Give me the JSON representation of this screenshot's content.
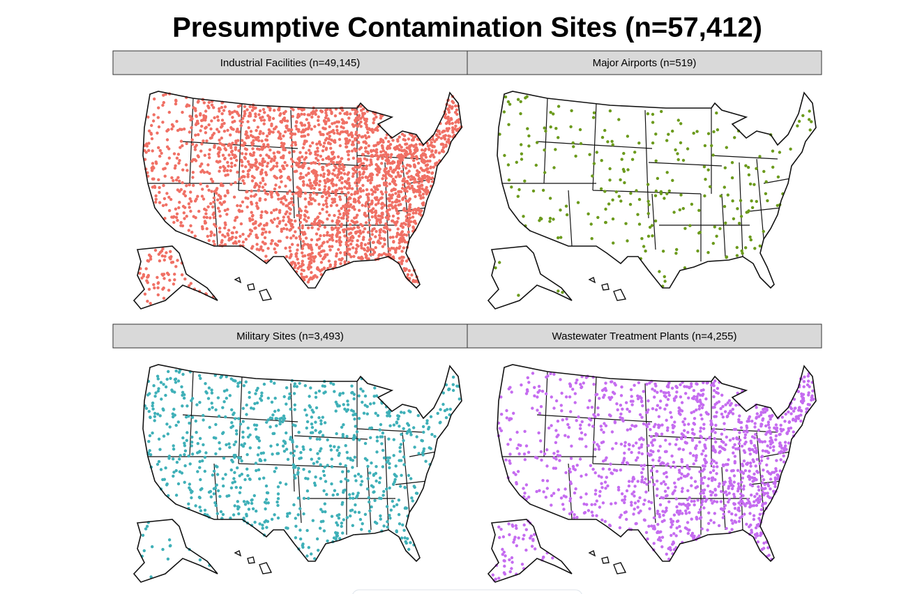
{
  "title": "Presumptive Contamination Sites (n=57,412)",
  "panels": [
    {
      "label": "Industrial Facilities (n=49,145)",
      "color": "#f07065"
    },
    {
      "label": "Major Airports (n=519)",
      "color": "#6b9a1c"
    },
    {
      "label": "Military Sites (n=3,493)",
      "color": "#3fb0b8"
    },
    {
      "label": "Wastewater Treatment Plants (n=4,255)",
      "color": "#c56cf0"
    }
  ]
}
